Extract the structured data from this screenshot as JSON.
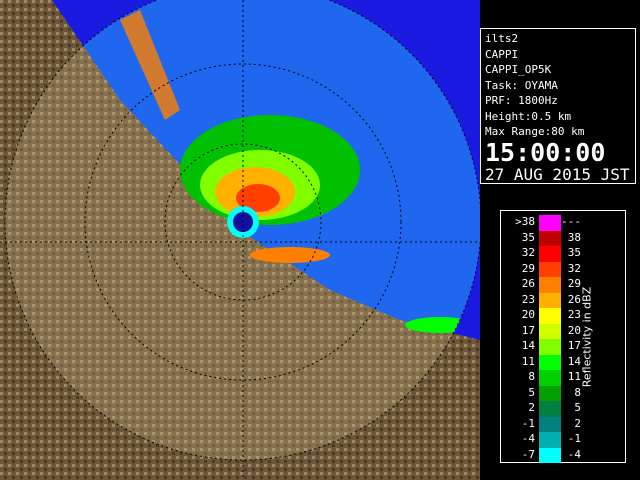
{
  "info": {
    "lines": [
      "ilts2",
      "CAPPI",
      "CAPPI_OP5K",
      "Task: OYAMA",
      "PRF: 1800Hz",
      "Height:0.5 km",
      "Max Range:80 km"
    ],
    "time": "15:00:00",
    "date": "27 AUG 2015 JST"
  },
  "legend": {
    "title": "Reflectivity in dBZ",
    "rows": [
      {
        "low": ">38",
        "high": "---",
        "color": "#ff00ff"
      },
      {
        "low": "35",
        "high": "38",
        "color": "#c00000"
      },
      {
        "low": "32",
        "high": "35",
        "color": "#ff0000"
      },
      {
        "low": "29",
        "high": "32",
        "color": "#ff4000"
      },
      {
        "low": "26",
        "high": "29",
        "color": "#ff8000"
      },
      {
        "low": "23",
        "high": "26",
        "color": "#ffb000"
      },
      {
        "low": "20",
        "high": "23",
        "color": "#ffff00"
      },
      {
        "low": "17",
        "high": "20",
        "color": "#d0ff00"
      },
      {
        "low": "14",
        "high": "17",
        "color": "#80ff00"
      },
      {
        "low": "11",
        "high": "14",
        "color": "#00ff00"
      },
      {
        "low": "8",
        "high": "11",
        "color": "#00d000"
      },
      {
        "low": "5",
        "high": "8",
        "color": "#00a000"
      },
      {
        "low": "2",
        "high": "5",
        "color": "#008040"
      },
      {
        "low": "-1",
        "high": "2",
        "color": "#008080"
      },
      {
        "low": "-4",
        "high": "-1",
        "color": "#00b0b0"
      },
      {
        "low": "-7",
        "high": "-4",
        "color": "#00ffff"
      }
    ]
  }
}
